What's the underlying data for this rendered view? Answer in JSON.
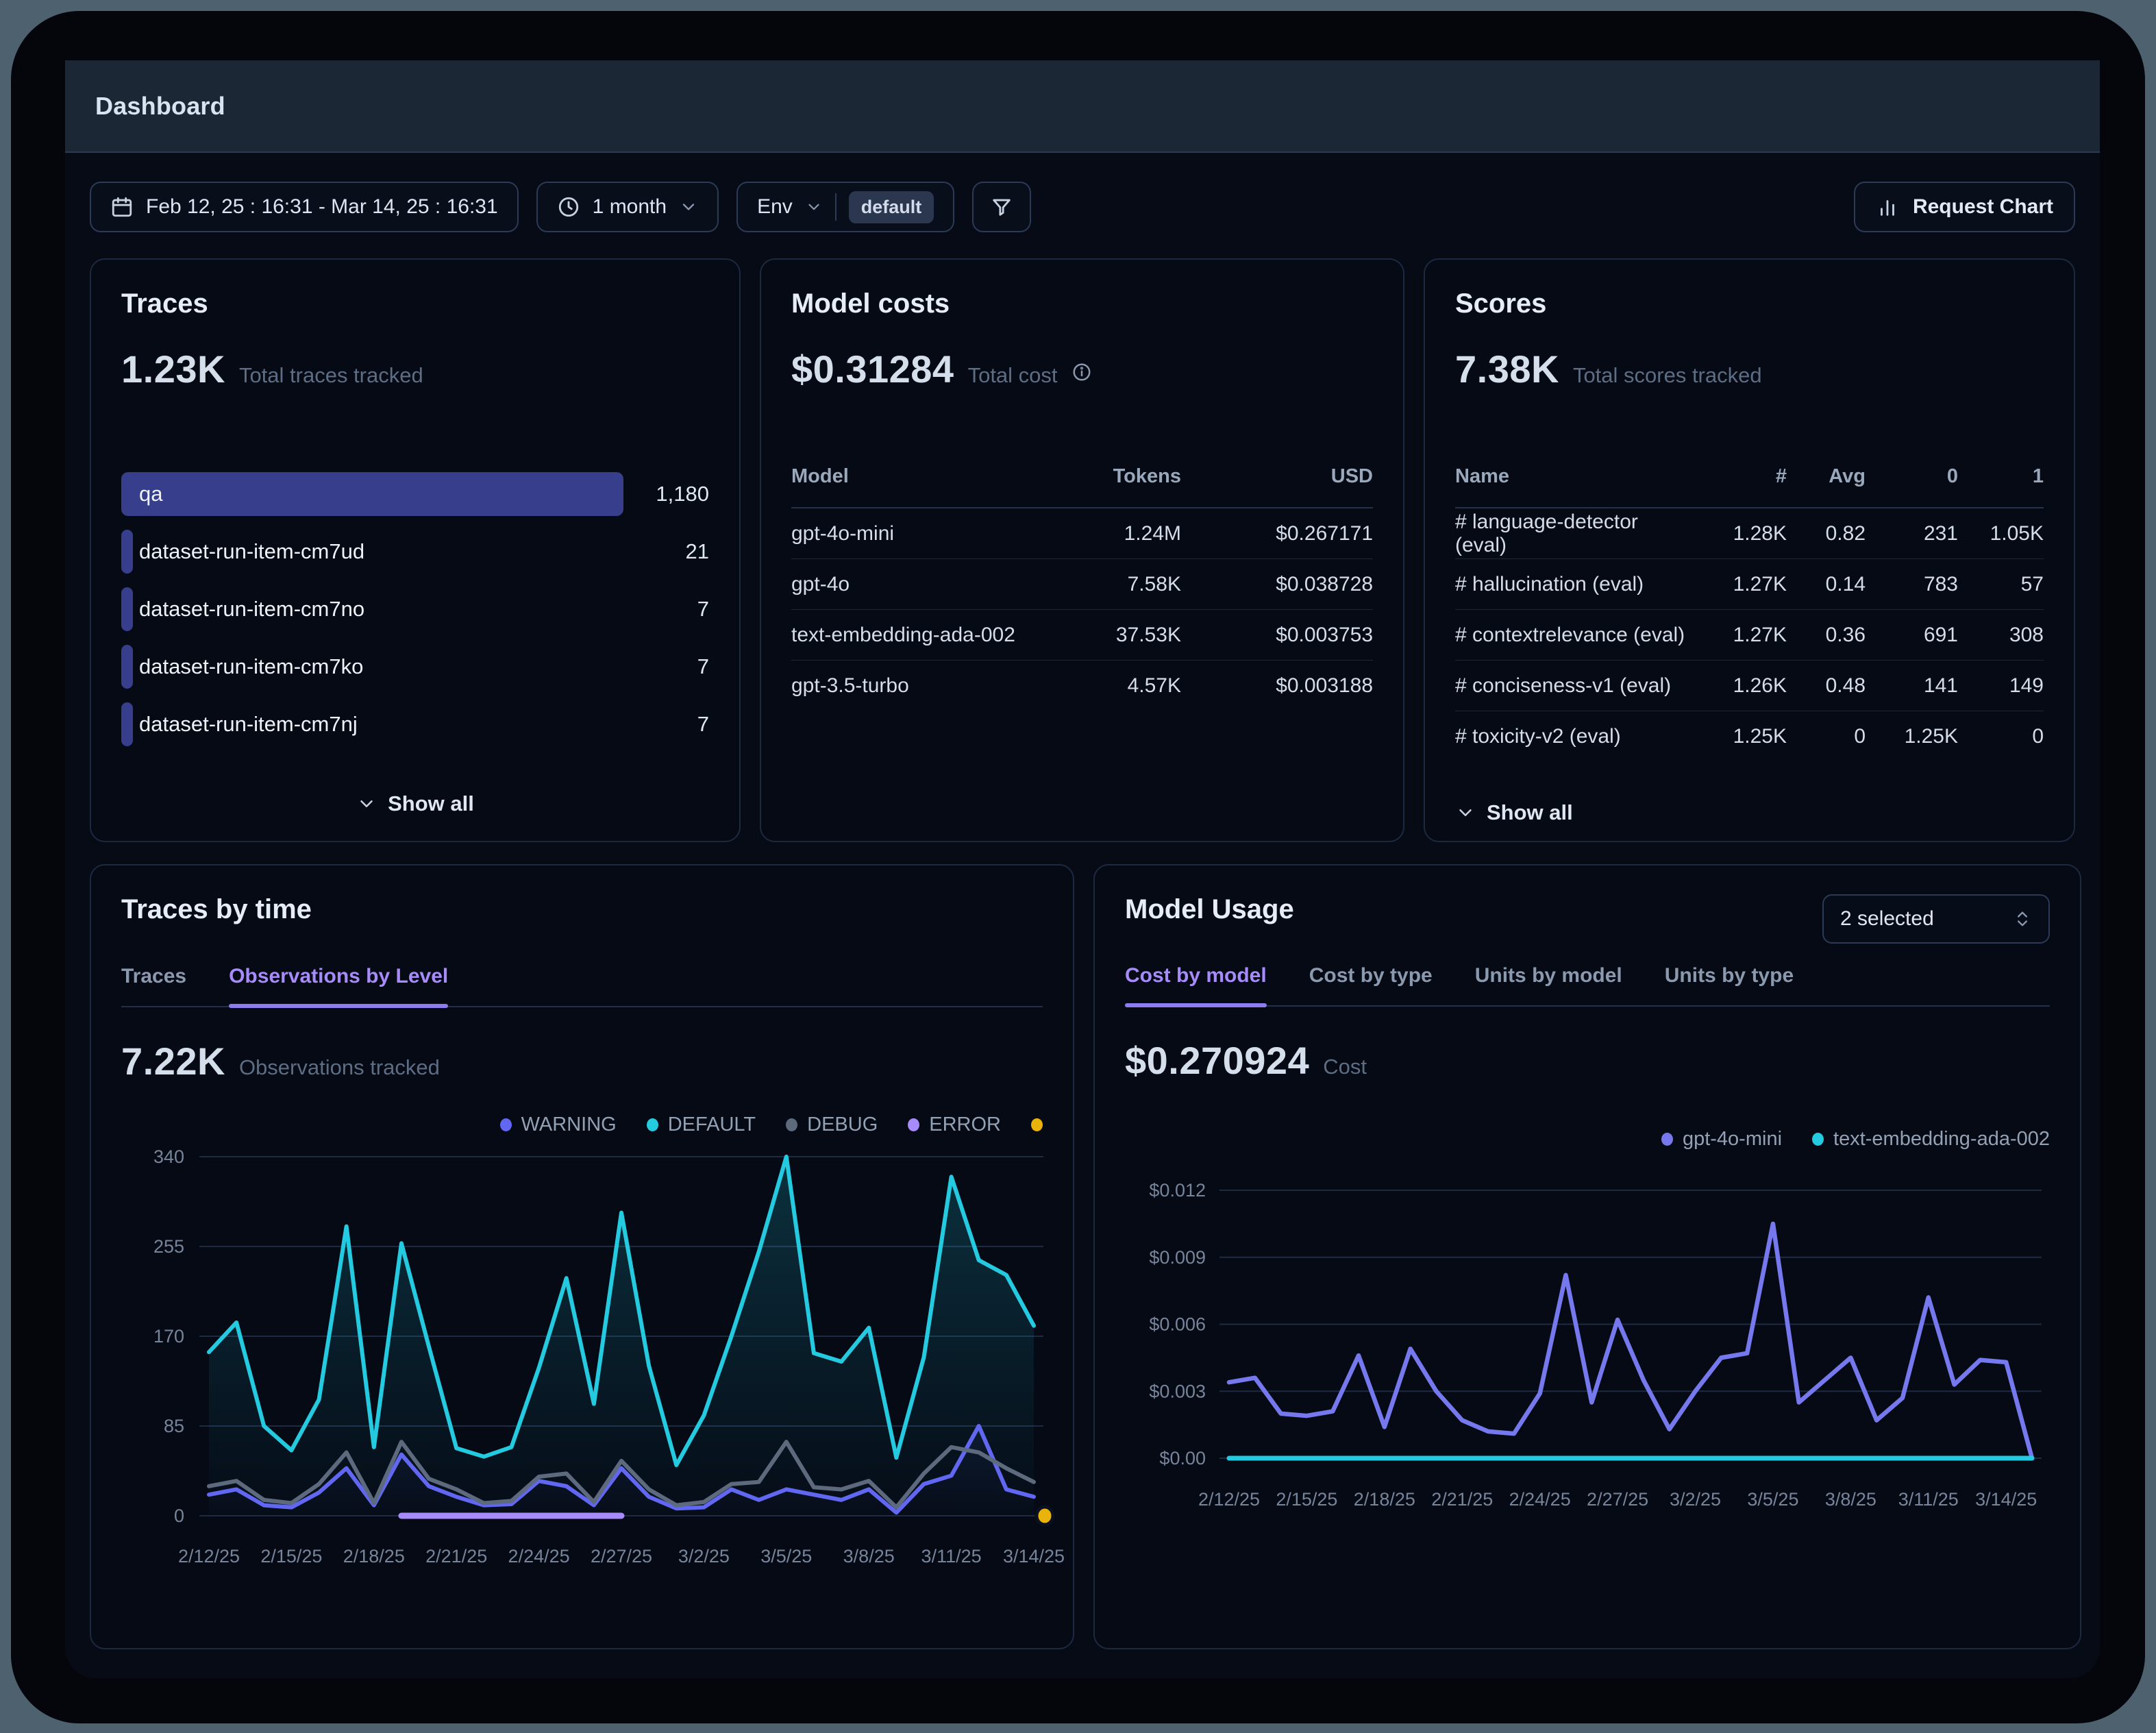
{
  "window": {
    "title": "Dashboard"
  },
  "toolbar": {
    "date_range": "Feb 12, 25 : 16:31 - Mar 14, 25 : 16:31",
    "period": "1 month",
    "env_label": "Env",
    "env_value": "default",
    "request_chart_label": "Request Chart"
  },
  "traces_card": {
    "title": "Traces",
    "metric": "1.23K",
    "metric_label": "Total traces tracked",
    "items": [
      {
        "label": "qa",
        "value": "1,180",
        "pct": 100
      },
      {
        "label": "dataset-run-item-cm7ud",
        "value": "21",
        "pct": 1.4
      },
      {
        "label": "dataset-run-item-cm7no",
        "value": "7",
        "pct": 1.4
      },
      {
        "label": "dataset-run-item-cm7ko",
        "value": "7",
        "pct": 1.4
      },
      {
        "label": "dataset-run-item-cm7nj",
        "value": "7",
        "pct": 1.4
      }
    ],
    "show_all": "Show all"
  },
  "model_costs_card": {
    "title": "Model costs",
    "metric": "$0.31284",
    "metric_label": "Total cost",
    "columns": [
      "Model",
      "Tokens",
      "USD"
    ],
    "rows": [
      [
        "gpt-4o-mini",
        "1.24M",
        "$0.267171"
      ],
      [
        "gpt-4o",
        "7.58K",
        "$0.038728"
      ],
      [
        "text-embedding-ada-002",
        "37.53K",
        "$0.003753"
      ],
      [
        "gpt-3.5-turbo",
        "4.57K",
        "$0.003188"
      ]
    ]
  },
  "scores_card": {
    "title": "Scores",
    "metric": "7.38K",
    "metric_label": "Total scores tracked",
    "columns": [
      "Name",
      "#",
      "Avg",
      "0",
      "1"
    ],
    "rows": [
      [
        "# language-detector (eval)",
        "1.28K",
        "0.82",
        "231",
        "1.05K"
      ],
      [
        "# hallucination (eval)",
        "1.27K",
        "0.14",
        "783",
        "57"
      ],
      [
        "# contextrelevance (eval)",
        "1.27K",
        "0.36",
        "691",
        "308"
      ],
      [
        "# conciseness-v1 (eval)",
        "1.26K",
        "0.48",
        "141",
        "149"
      ],
      [
        "# toxicity-v2 (eval)",
        "1.25K",
        "0",
        "1.25K",
        "0"
      ]
    ],
    "show_all": "Show all"
  },
  "traces_by_time_card": {
    "title": "Traces by time",
    "tabs": [
      "Traces",
      "Observations by Level"
    ],
    "active_tab": 1,
    "metric": "7.22K",
    "metric_label": "Observations tracked"
  },
  "model_usage_card": {
    "title": "Model Usage",
    "selected": "2 selected",
    "tabs": [
      "Cost by model",
      "Cost by type",
      "Units by model",
      "Units by type"
    ],
    "active_tab": 0,
    "metric": "$0.270924",
    "metric_label": "Cost"
  },
  "colors": {
    "warning": "#6167f0",
    "default": "#24cbe0",
    "debug": "#5d6a7d",
    "error": "#a78bfa",
    "marker_yellow": "#e9b30b",
    "gpt4o_mini": "#7678ee",
    "embedding": "#24cbe0",
    "accent_purple": "#a78bfa",
    "bar_indigo": "#373f8c"
  },
  "chart_data": [
    {
      "type": "line",
      "title": "Observations by Level",
      "n_points": 31,
      "x_tick_labels": [
        "2/12/25",
        "2/15/25",
        "2/18/25",
        "2/21/25",
        "2/24/25",
        "2/27/25",
        "3/2/25",
        "3/5/25",
        "3/8/25",
        "3/11/25",
        "3/14/25"
      ],
      "x_tick_indices": [
        0,
        3,
        6,
        9,
        12,
        15,
        18,
        21,
        24,
        27,
        30
      ],
      "ylim": [
        0,
        340
      ],
      "y_ticks": [
        {
          "v": 0,
          "label": "0"
        },
        {
          "v": 85,
          "label": "85"
        },
        {
          "v": 170,
          "label": "170"
        },
        {
          "v": 255,
          "label": "255"
        },
        {
          "v": 340,
          "label": "340"
        }
      ],
      "legend": [
        "WARNING",
        "DEFAULT",
        "DEBUG",
        "ERROR"
      ],
      "series": [
        {
          "name": "WARNING",
          "color": "#6167f0",
          "width": 6,
          "area": true,
          "area_opacity": 0.28,
          "values": [
            20,
            25,
            10,
            8,
            22,
            45,
            10,
            58,
            28,
            18,
            10,
            11,
            33,
            28,
            10,
            45,
            18,
            7,
            8,
            25,
            15,
            25,
            20,
            15,
            25,
            3,
            30,
            38,
            85,
            25,
            18
          ]
        },
        {
          "name": "DEFAULT",
          "color": "#24cbe0",
          "width": 6,
          "area": true,
          "area_opacity": 0.2,
          "values": [
            155,
            183,
            85,
            62,
            110,
            274,
            65,
            258,
            160,
            64,
            56,
            65,
            140,
            225,
            106,
            287,
            142,
            48,
            95,
            170,
            250,
            340,
            154,
            146,
            178,
            55,
            150,
            321,
            242,
            228,
            180
          ]
        },
        {
          "name": "DEBUG",
          "color": "#5d6a7d",
          "width": 6,
          "area": false,
          "values": [
            28,
            33,
            15,
            12,
            30,
            60,
            12,
            70,
            35,
            25,
            12,
            14,
            37,
            40,
            13,
            52,
            25,
            10,
            13,
            30,
            32,
            70,
            27,
            25,
            33,
            8,
            40,
            65,
            60,
            45,
            32
          ]
        },
        {
          "name": "ERROR",
          "color": "#a78bfa",
          "width": 9,
          "area": false,
          "values": [
            null,
            null,
            null,
            null,
            null,
            null,
            null,
            0,
            0,
            0,
            0,
            0,
            0,
            0,
            0,
            0,
            null,
            null,
            null,
            null,
            null,
            null,
            null,
            null,
            null,
            null,
            null,
            null,
            null,
            null,
            null
          ]
        }
      ],
      "marker": {
        "color": "#e9b30b",
        "value": 0
      }
    },
    {
      "type": "line",
      "title": "Cost by model",
      "n_points": 32,
      "x_tick_labels": [
        "2/12/25",
        "2/15/25",
        "2/18/25",
        "2/21/25",
        "2/24/25",
        "2/27/25",
        "3/2/25",
        "3/5/25",
        "3/8/25",
        "3/11/25",
        "3/14/25"
      ],
      "x_tick_indices": [
        0,
        3,
        6,
        9,
        12,
        15,
        18,
        21,
        24,
        27,
        30
      ],
      "ylim": [
        0,
        0.012
      ],
      "y_ticks": [
        {
          "v": 0,
          "label": "$0.00"
        },
        {
          "v": 0.003,
          "label": "$0.003"
        },
        {
          "v": 0.006,
          "label": "$0.006"
        },
        {
          "v": 0.009,
          "label": "$0.009"
        },
        {
          "v": 0.012,
          "label": "$0.012"
        }
      ],
      "legend": [
        "gpt-4o-mini",
        "text-embedding-ada-002"
      ],
      "series": [
        {
          "name": "gpt-4o-mini",
          "color": "#7678ee",
          "width": 6.5,
          "area": false,
          "values": [
            0.0034,
            0.0036,
            0.002,
            0.0019,
            0.0021,
            0.0046,
            0.0014,
            0.0049,
            0.003,
            0.0017,
            0.0012,
            0.0011,
            0.0029,
            0.0082,
            0.0025,
            0.0062,
            0.0035,
            0.0013,
            0.003,
            0.0045,
            0.0047,
            0.0105,
            0.0025,
            0.0035,
            0.0045,
            0.0017,
            0.0027,
            0.0072,
            0.0033,
            0.0044,
            0.0043,
            0
          ]
        },
        {
          "name": "text-embedding-ada-002",
          "color": "#24cbe0",
          "width": 7,
          "area": false,
          "values": [
            0,
            0,
            0,
            0,
            0,
            0,
            0,
            0,
            0,
            0,
            0,
            0,
            0,
            0,
            0,
            0,
            0,
            0,
            0,
            0,
            0,
            0,
            0,
            0,
            0,
            0,
            0,
            0,
            0,
            0,
            0,
            0
          ]
        }
      ]
    }
  ]
}
